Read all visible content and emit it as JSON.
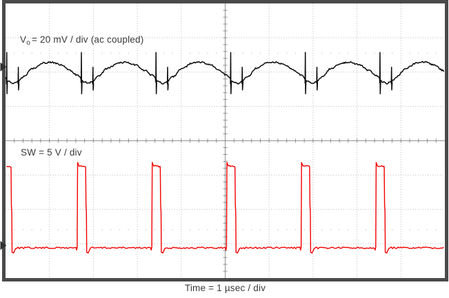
{
  "figure": {
    "background": "#ffffff",
    "border_color": "#4a4a4a",
    "grid_color": "#b4b4b4",
    "axis_color": "#929292",
    "tick_color": "#8d8d8d",
    "label_color": "#3a3a3a"
  },
  "labels": {
    "vo_v": "V",
    "vo_sub": "o",
    "vo_rest": "= 20 mV / div (ac coupled)",
    "sw": "SW = 5 V / div",
    "time": "Time = 1 µsec / div"
  },
  "chart_data": {
    "type": "line",
    "title": "",
    "xlabel": "Time = 1 µsec / div",
    "x_divisions": 10,
    "y_divisions": 8,
    "time_per_div": "1 µsec",
    "grid_style": "dotted division lines, center cross-hair axes with 0.2-div minor ticks",
    "legend_position": "labels inside plot area",
    "series": [
      {
        "name": "Vo",
        "label": "Vo = 20 mV / div (ac coupled)",
        "color": "#0a0a0a",
        "vertical_scale": "20 mV/div",
        "coupling": "ac",
        "period_us": 1.7,
        "ripple_pp_mv": 12,
        "spike_pp_mv": 24,
        "ref_marker_div": 1.85,
        "waveform": {
          "period_div": 1.699,
          "first_edge_div": -0.063,
          "anchors_phase_div": [
            [
              0,
              2.09
            ],
            [
              0.085,
              2.28
            ],
            [
              0.15,
              2.33
            ],
            [
              0.21,
              2.26
            ],
            [
              0.28,
              2.13
            ],
            [
              0.4,
              1.89
            ],
            [
              0.55,
              1.73
            ],
            [
              0.65,
              1.71
            ],
            [
              0.78,
              1.79
            ],
            [
              0.9,
              1.95
            ],
            [
              1,
              2.09
            ]
          ],
          "primary_spike": {
            "phase": 0.055,
            "top_div": 1.43,
            "bottom_div": 2.63
          },
          "secondary_spike": {
            "phase": 0.21,
            "top_div": 1.86,
            "bottom_div": 2.52
          },
          "noise_div": 0.022
        }
      },
      {
        "name": "SW",
        "label": "SW = 5 V / div",
        "color": "#f20000",
        "vertical_scale": "5 V/div",
        "period_us": 1.7,
        "on_time_us": 0.19,
        "duty_cycle": 0.11,
        "low_level_v": 0,
        "high_level_v": 12,
        "ref_marker_div": 7.05,
        "waveform": {
          "period_div": 1.699,
          "first_rise_div": -0.063,
          "width_div": 0.19,
          "baseline_div": 7.12,
          "high_div": 4.69,
          "noise_div": 0.024
        }
      }
    ]
  }
}
